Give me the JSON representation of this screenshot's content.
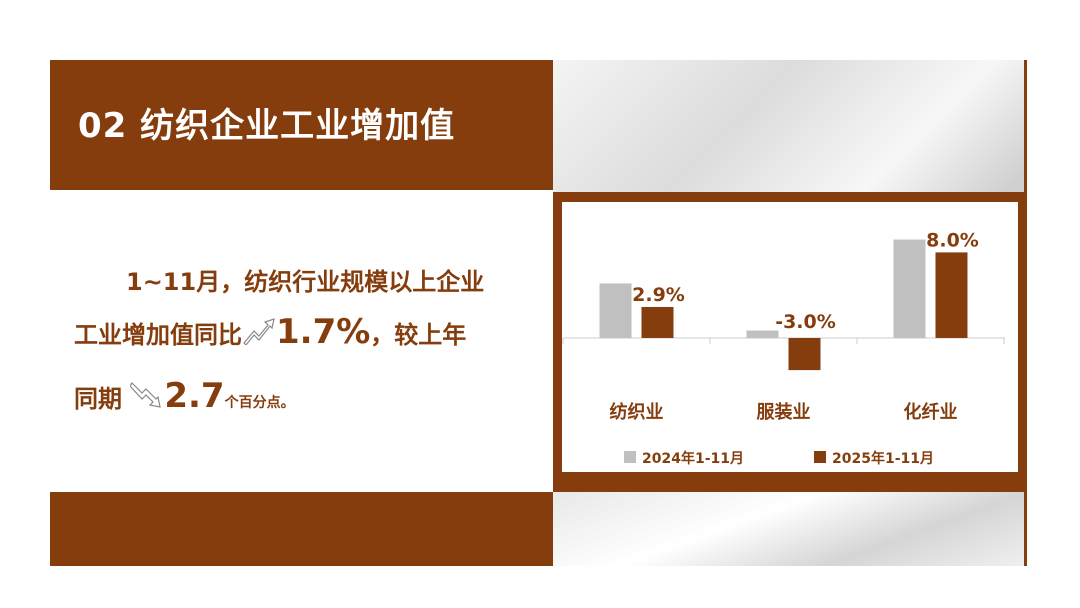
{
  "title": "02 纺织企业工业增加值",
  "text": {
    "line1": "1~11月，纺织行业规模以上企业",
    "line2_a": "工业增加值同比",
    "line2_value": "1.7%",
    "line2_b": "，较上年",
    "line3_a": "同期",
    "line3_value": "2.7",
    "line3_b": "个百分点。",
    "up_icon": "trend-up-arrow-icon",
    "down_icon": "trend-down-arrow-icon"
  },
  "colors": {
    "brand": "#853d0e",
    "series2024": "#c0c0c0",
    "series2025": "#853d0e"
  },
  "chart_data": {
    "type": "bar",
    "categories": [
      "纺织业",
      "服装业",
      "化纤业"
    ],
    "series": [
      {
        "name": "2024年1-11月",
        "values": [
          5.1,
          0.7,
          9.2
        ]
      },
      {
        "name": "2025年1-11月",
        "values": [
          2.9,
          -3.0,
          8.0
        ]
      }
    ],
    "data_labels": [
      "2.9%",
      "-3.0%",
      "8.0%"
    ],
    "legend": "bottom",
    "grid": false
  }
}
